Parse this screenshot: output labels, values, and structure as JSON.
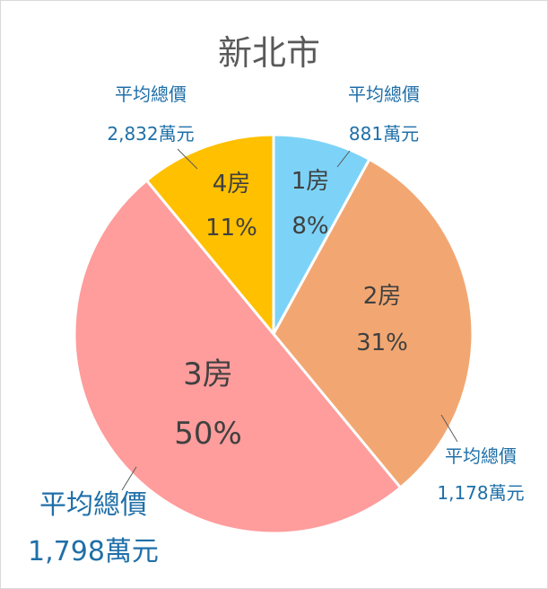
{
  "chart_data": {
    "type": "pie",
    "title": "新北市",
    "slices": [
      {
        "label": "1房",
        "percent_label": "8%",
        "value": 8,
        "callout_title": "平均總價",
        "callout_value": "881萬元",
        "color": "#7dd3f7"
      },
      {
        "label": "2房",
        "percent_label": "31%",
        "value": 31,
        "callout_title": "平均總價",
        "callout_value": "1,178萬元",
        "color": "#f2a772"
      },
      {
        "label": "3房",
        "percent_label": "50%",
        "value": 50,
        "callout_title": "平均總價",
        "callout_value": "1,798萬元",
        "color": "#ff9c9c"
      },
      {
        "label": "4房",
        "percent_label": "11%",
        "value": 11,
        "callout_title": "平均總價",
        "callout_value": "2,832萬元",
        "color": "#ffc000"
      }
    ]
  }
}
